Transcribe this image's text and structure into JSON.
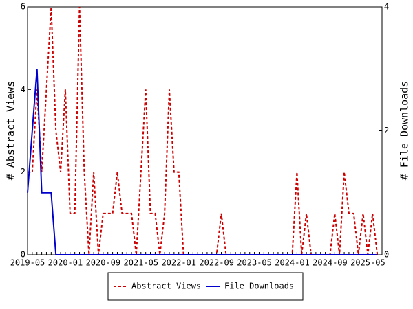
{
  "chart_data": {
    "type": "line",
    "categories": [
      "2019-05",
      null,
      null,
      null,
      null,
      null,
      null,
      null,
      "2020-01",
      null,
      null,
      null,
      null,
      null,
      null,
      null,
      "2020-09",
      null,
      null,
      null,
      null,
      null,
      null,
      null,
      "2021-05",
      null,
      null,
      null,
      null,
      null,
      null,
      null,
      "2022-01",
      null,
      null,
      null,
      null,
      null,
      null,
      null,
      "2022-09",
      null,
      null,
      null,
      null,
      null,
      null,
      null,
      "2023-05",
      null,
      null,
      null,
      null,
      null,
      null,
      null,
      "2024-01",
      null,
      null,
      null,
      null,
      null,
      null,
      null,
      "2024-09",
      null,
      null,
      null,
      null,
      null,
      null,
      null,
      "2025-05",
      null,
      null
    ],
    "ylabel": "# Abstract Views",
    "y2label": "# File Downloads",
    "ylim": [
      0,
      6
    ],
    "yticks": [
      0,
      2,
      4,
      6
    ],
    "y2lim": [
      0,
      4
    ],
    "y2ticks": [
      0,
      2,
      4
    ],
    "legend": "bottom",
    "series": [
      {
        "name": "Abstract Views",
        "color": "#cc0000",
        "dashed": true,
        "values": [
          2,
          2,
          4,
          2,
          4,
          6,
          3,
          2,
          4,
          1,
          1,
          6,
          2,
          0,
          2,
          0,
          1,
          1,
          1,
          2,
          1,
          1,
          1,
          0,
          2,
          4,
          1,
          1,
          0,
          1,
          4,
          2,
          2,
          0,
          0,
          0,
          0,
          0,
          0,
          0,
          0,
          1,
          0,
          0,
          0,
          0,
          0,
          0,
          0,
          0,
          0,
          0,
          0,
          0,
          0,
          0,
          0,
          2,
          0,
          1,
          0,
          0,
          0,
          0,
          0,
          1,
          0,
          2,
          1,
          1,
          0,
          1,
          0,
          1,
          0
        ]
      },
      {
        "name": "File Downloads",
        "color": "#0000cc",
        "dashed": false,
        "axis": "y2",
        "values": [
          1,
          2,
          3,
          1,
          1,
          1,
          0,
          0,
          0,
          0,
          0,
          0,
          0,
          0,
          0,
          0,
          0,
          0,
          0,
          0,
          0,
          0,
          0,
          0,
          0,
          0,
          0,
          0,
          0,
          0,
          0,
          0,
          0,
          0,
          0,
          0,
          0,
          0,
          0,
          0,
          0,
          0,
          0,
          0,
          0,
          0,
          0,
          0,
          0,
          0,
          0,
          0,
          0,
          0,
          0,
          0,
          0,
          0,
          0,
          0,
          0,
          0,
          0,
          0,
          0,
          0,
          0,
          0,
          0,
          0,
          0,
          0,
          0,
          0,
          0
        ]
      }
    ]
  }
}
